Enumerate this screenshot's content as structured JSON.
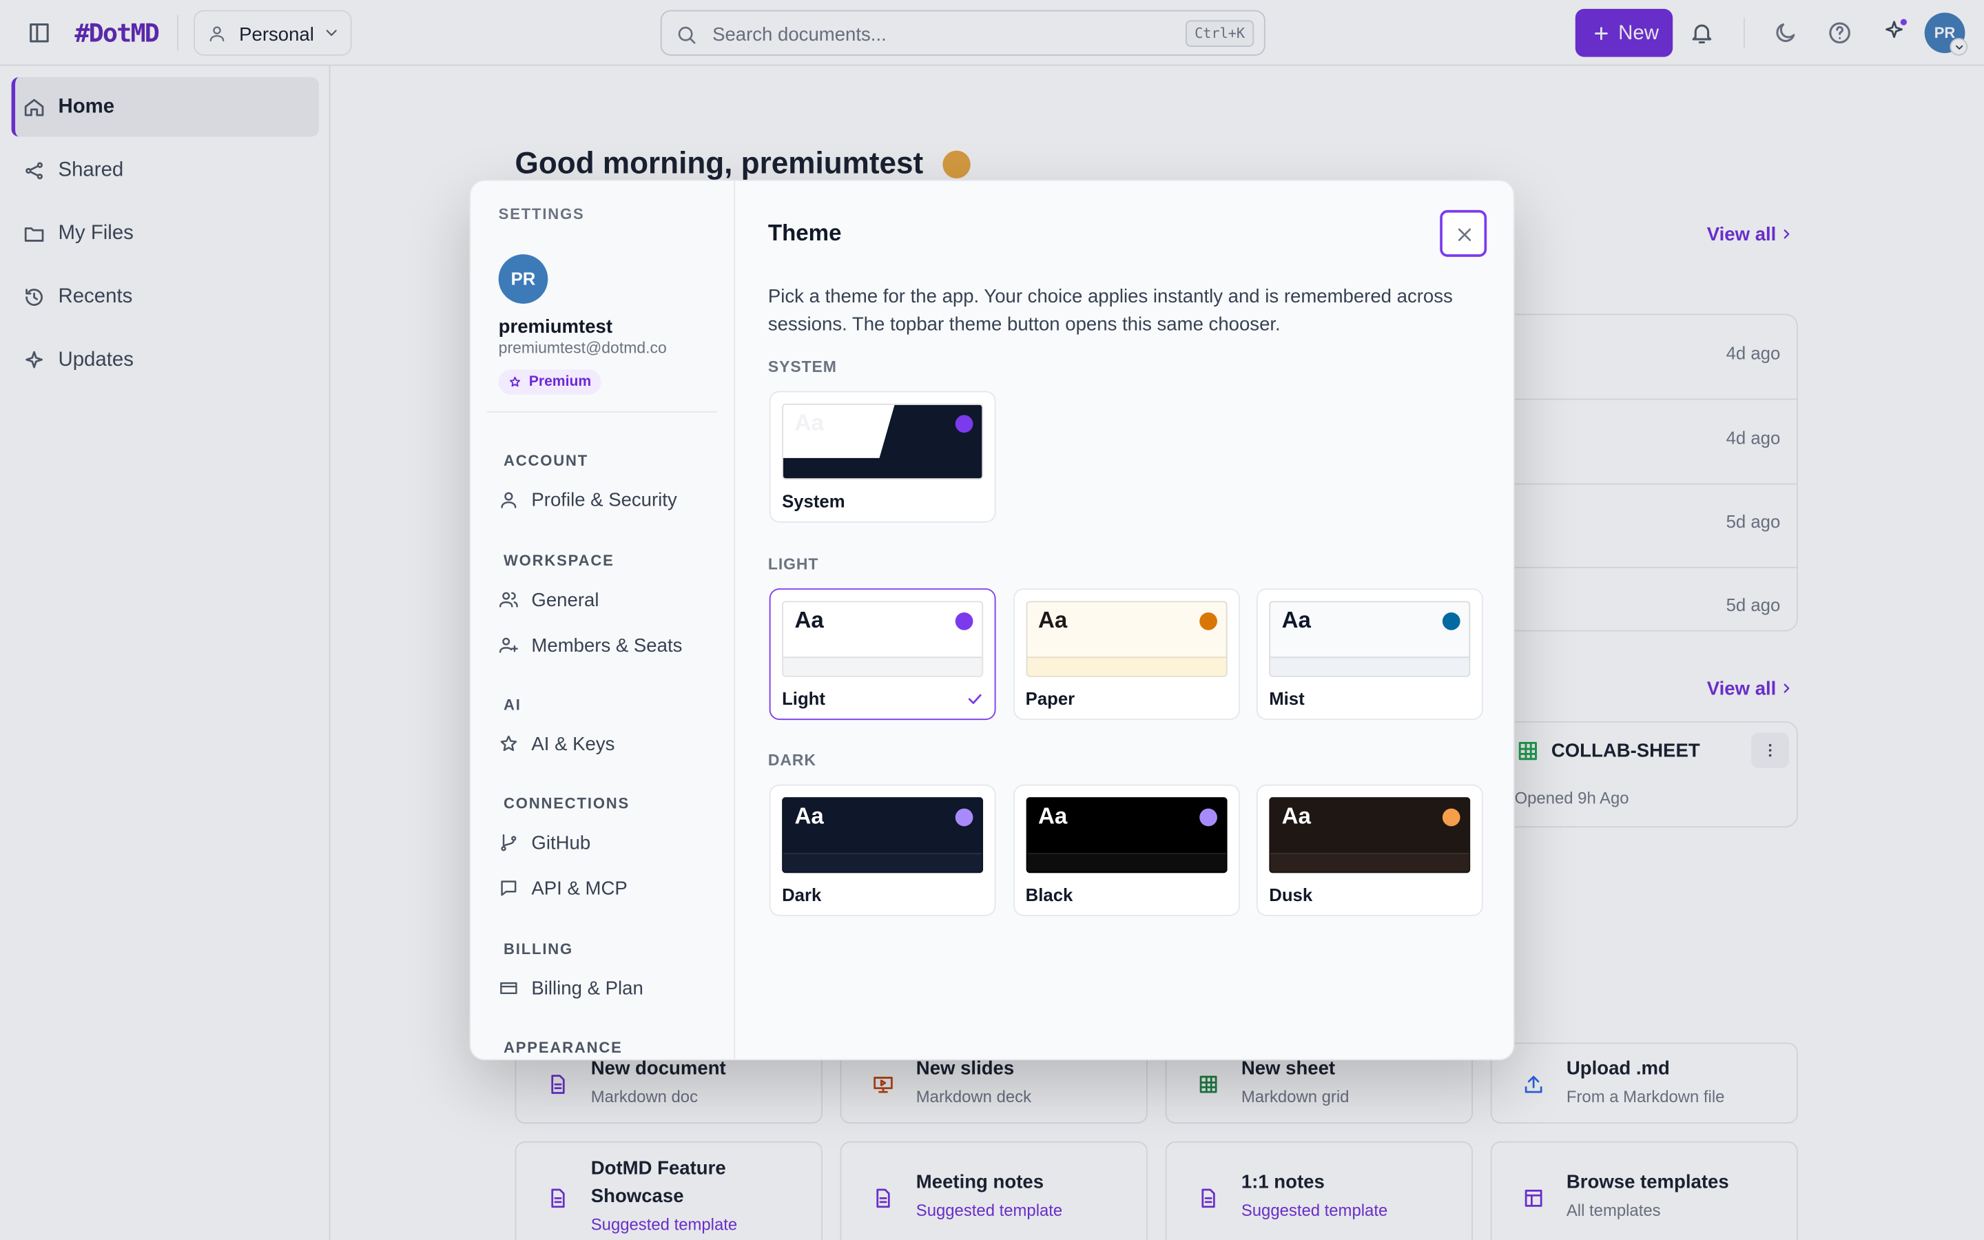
{
  "topbar": {
    "logo": "#DotMD",
    "workspace": "Personal",
    "search_placeholder": "Search documents...",
    "shortcut": "Ctrl+K",
    "new_button": "New",
    "avatar": "PR"
  },
  "sidebar": {
    "items": [
      "Home",
      "Shared",
      "My Files",
      "Recents",
      "Updates"
    ]
  },
  "main": {
    "greeting": "Good morning, premiumtest",
    "view_all": "View all",
    "recent_times": [
      "4d ago",
      "4d ago",
      "5d ago",
      "5d ago"
    ],
    "card": {
      "title": "COLLAB-SHEET",
      "subtitle": "Opened 9h Ago"
    },
    "actions": [
      {
        "title": "New document",
        "subtitle": "Markdown doc"
      },
      {
        "title": "New slides",
        "subtitle": "Markdown deck"
      },
      {
        "title": "New sheet",
        "subtitle": "Markdown grid"
      },
      {
        "title": "Upload .md",
        "subtitle": "From a Markdown file"
      }
    ],
    "templates": [
      {
        "title": "DotMD Feature Showcase",
        "subtitle": "Suggested template"
      },
      {
        "title": "Meeting notes",
        "subtitle": "Suggested template"
      },
      {
        "title": "1:1 notes",
        "subtitle": "Suggested template"
      },
      {
        "title": "Browse templates",
        "subtitle": "All templates"
      }
    ]
  },
  "settings": {
    "heading": "SETTINGS",
    "user": {
      "initials": "PR",
      "name": "premiumtest",
      "email": "premiumtest@dotmd.co",
      "plan": "Premium"
    },
    "nav": [
      {
        "label": "ACCOUNT",
        "items": [
          "Profile & Security"
        ]
      },
      {
        "label": "WORKSPACE",
        "items": [
          "General",
          "Members & Seats"
        ]
      },
      {
        "label": "AI",
        "items": [
          "AI & Keys"
        ]
      },
      {
        "label": "CONNECTIONS",
        "items": [
          "GitHub",
          "API & MCP"
        ]
      },
      {
        "label": "BILLING",
        "items": [
          "Billing & Plan"
        ]
      },
      {
        "label": "APPEARANCE",
        "items": []
      }
    ],
    "title": "Theme",
    "description": "Pick a theme for the app. Your choice applies instantly and is remembered across sessions. The topbar theme button opens this same chooser.",
    "sections": [
      {
        "label": "SYSTEM",
        "themes": [
          {
            "name": "System",
            "bg": "#ffffff",
            "bg2": "#0f172a",
            "text": "#f1f2f5",
            "dot": "#7c3aed",
            "bar": "#0f172a",
            "selected": false
          }
        ]
      },
      {
        "label": "LIGHT",
        "themes": [
          {
            "name": "Light",
            "bg": "#ffffff",
            "text": "#111827",
            "dot": "#7c3aed",
            "bar": "#f3f4f6",
            "selected": true
          },
          {
            "name": "Paper",
            "bg": "#fefaf0",
            "text": "#1c1917",
            "dot": "#d97706",
            "bar": "#fdf3d8",
            "selected": false
          },
          {
            "name": "Mist",
            "bg": "#f8fafc",
            "text": "#0f172a",
            "dot": "#0369a1",
            "bar": "#eef1f5",
            "selected": false
          }
        ]
      },
      {
        "label": "DARK",
        "themes": [
          {
            "name": "Dark",
            "bg": "#0f172a",
            "text": "#ffffff",
            "dot": "#a78bfa",
            "bar": "#151d33",
            "selected": false
          },
          {
            "name": "Black",
            "bg": "#000000",
            "text": "#ffffff",
            "dot": "#a78bfa",
            "bar": "#0d0d0d",
            "selected": false
          },
          {
            "name": "Dusk",
            "bg": "#1f1714",
            "text": "#ffffff",
            "dot": "#f59e4b",
            "bar": "#2b201c",
            "selected": false
          }
        ]
      }
    ]
  }
}
